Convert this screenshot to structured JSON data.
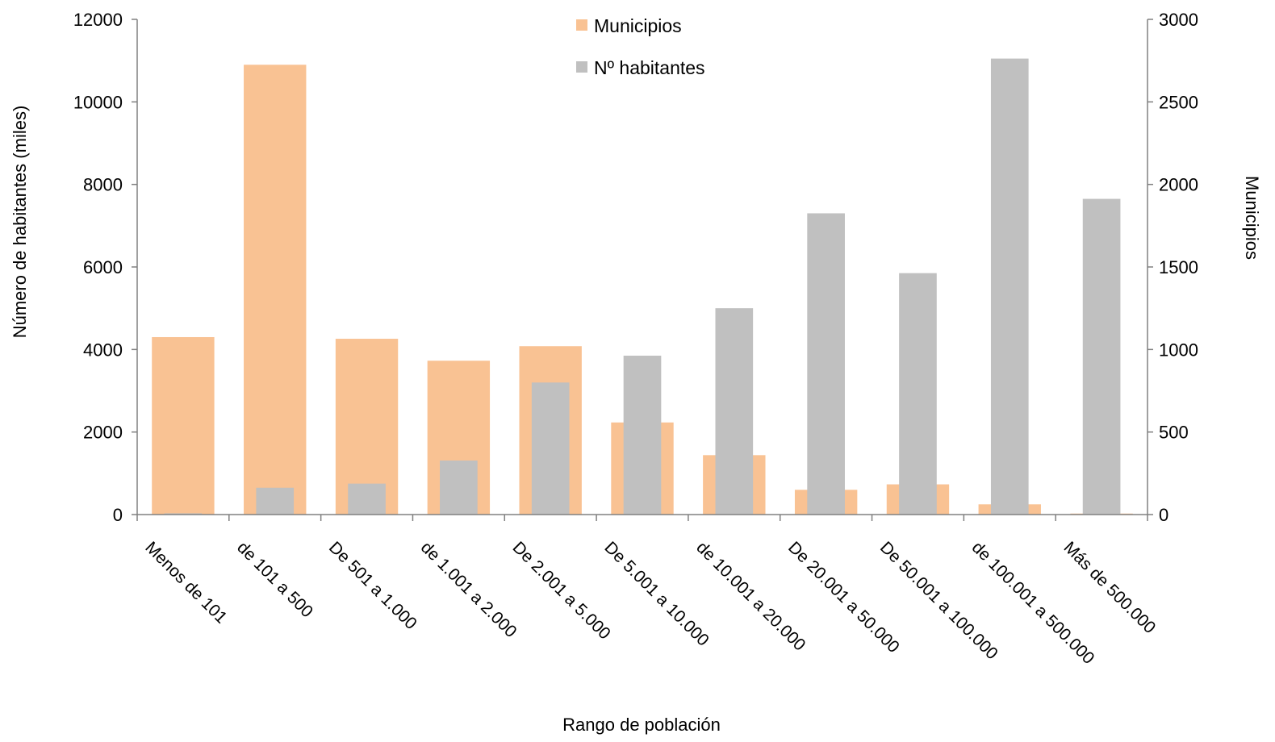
{
  "chart_data": {
    "type": "bar",
    "title": "",
    "xlabel": "Rango de población",
    "ylabel": "Número de habitantes  (miles)",
    "ylabel_right": "Municipios",
    "categories": [
      "Menos de 101",
      "de 101 a 500",
      "De 501 a 1.000",
      "de 1.001 a 2.000",
      "De 2.001 a 5.000",
      "De 5.001 a 10.000",
      "de 10.001 a 20.000",
      "De 20.001 a 50.000",
      "De 50.001 a 100.000",
      "de 100.001 a 500.000",
      "Más de 500.000"
    ],
    "ylim": [
      0,
      12000
    ],
    "ylim_right": [
      0,
      3000
    ],
    "yticks": [
      "0",
      "2000",
      "4000",
      "6000",
      "8000",
      "10000",
      "12000"
    ],
    "yticks_right": [
      "0",
      "500",
      "1000",
      "1500",
      "2000",
      "2500",
      "3000"
    ],
    "series": [
      {
        "name": "Municipios",
        "axis": "right",
        "color": "#F9C293",
        "values": [
          1075,
          2725,
          1065,
          932,
          1020,
          558,
          360,
          150,
          183,
          62,
          6
        ]
      },
      {
        "name": "Nº habitantes",
        "axis": "left",
        "color": "#C0C0C0",
        "values": [
          30,
          650,
          750,
          1310,
          3200,
          3850,
          5000,
          7300,
          5850,
          11050,
          7650
        ]
      }
    ],
    "legend_position": "top-center",
    "grid": false
  }
}
